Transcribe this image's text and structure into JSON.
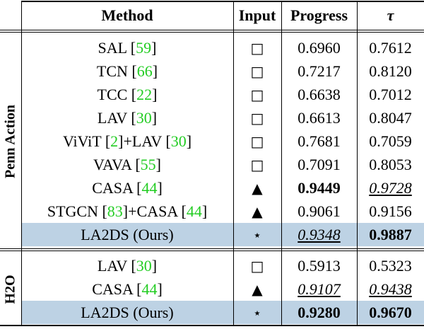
{
  "header": {
    "method": "Method",
    "input": "Input",
    "progress": "Progress",
    "tau": "τ"
  },
  "groups": [
    {
      "name": "Penn Action",
      "rows": [
        {
          "method": "SAL [59]",
          "input": "□",
          "progress": "0.6960",
          "tau": "0.7612"
        },
        {
          "method": "TCN [66]",
          "input": "□",
          "progress": "0.7217",
          "tau": "0.8120"
        },
        {
          "method": "TCC [22]",
          "input": "□",
          "progress": "0.6638",
          "tau": "0.7012"
        },
        {
          "method": "LAV [30]",
          "input": "□",
          "progress": "0.6613",
          "tau": "0.8047"
        },
        {
          "method": "ViViT [2]+LAV [30]",
          "input": "□",
          "progress": "0.7681",
          "tau": "0.7059"
        },
        {
          "method": "VAVA [55]",
          "input": "□",
          "progress": "0.7091",
          "tau": "0.8053"
        },
        {
          "method": "CASA [44]",
          "input": "▲",
          "progress": "0.9449",
          "tau": "0.9728",
          "bold": [
            "progress"
          ],
          "underline": [
            "tau"
          ]
        },
        {
          "method": "STGCN [83]+CASA [44]",
          "input": "▲",
          "progress": "0.9061",
          "tau": "0.9156"
        },
        {
          "method": "LA2DS (Ours)",
          "input": "⋆",
          "progress": "0.9348",
          "tau": "0.9887",
          "bold": [
            "tau"
          ],
          "underline": [
            "progress"
          ],
          "highlight": true
        }
      ]
    },
    {
      "name": "H2O",
      "rows": [
        {
          "method": "LAV [30]",
          "input": "□",
          "progress": "0.5913",
          "tau": "0.5323"
        },
        {
          "method": "CASA [44]",
          "input": "▲",
          "progress": "0.9107",
          "tau": "0.9438",
          "underline": [
            "progress",
            "tau"
          ]
        },
        {
          "method": "LA2DS (Ours)",
          "input": "⋆",
          "progress": "0.9280",
          "tau": "0.9670",
          "bold": [
            "progress",
            "tau"
          ],
          "highlight": true
        }
      ]
    }
  ]
}
